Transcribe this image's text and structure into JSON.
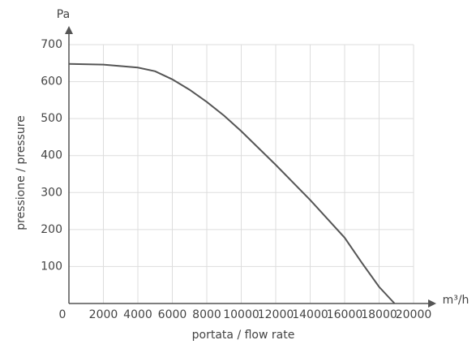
{
  "chart_data": {
    "type": "line",
    "x_label": "portata / flow rate",
    "y_label": "pressione / pressure",
    "y_unit": "Pa",
    "x_unit": "m³/h",
    "x": [
      0,
      2000,
      4000,
      5000,
      6000,
      7000,
      8000,
      9000,
      10000,
      12000,
      14000,
      16000,
      17000,
      18000,
      18900
    ],
    "values": [
      648,
      646,
      638,
      628,
      606,
      578,
      545,
      508,
      466,
      375,
      280,
      178,
      110,
      45,
      0
    ],
    "color": "#555555",
    "xlim": [
      0,
      20000
    ],
    "xticks": [
      0,
      2000,
      4000,
      6000,
      8000,
      10000,
      12000,
      14000,
      16000,
      18000,
      20000
    ],
    "ylim": [
      0,
      700
    ],
    "yticks": [
      100,
      200,
      300,
      400,
      500,
      600,
      700
    ],
    "grid": true
  }
}
